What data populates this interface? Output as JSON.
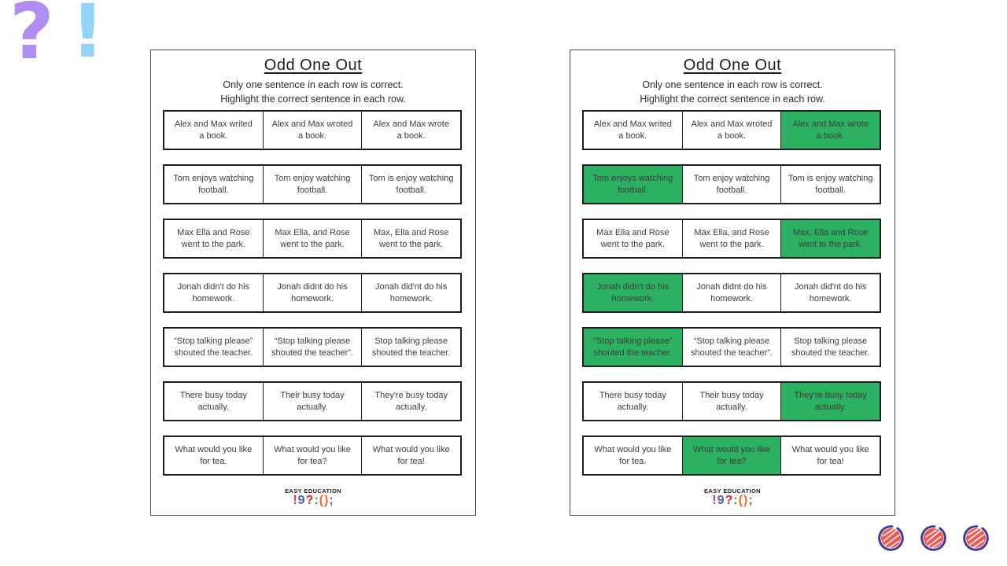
{
  "colors": {
    "highlight_green": "#2cb061",
    "question_mark_purple": "#b18df1",
    "exclamation_blue": "#92d4f7",
    "circle_ring": "#3b3e95",
    "circle_scribble": "#f4554e"
  },
  "decorations": {
    "question_mark": "?",
    "exclamation_mark": "!",
    "scribble_circle_count": 3
  },
  "worksheets": [
    {
      "side": "left",
      "title": "Odd One Out",
      "instructions": [
        "Only one sentence in each row is correct.",
        "Highlight the correct sentence in each row."
      ],
      "rows": [
        {
          "cells": [
            {
              "lines": [
                "Alex and Max writed",
                "a book."
              ],
              "highlight": false
            },
            {
              "lines": [
                "Alex and Max wroted",
                "a book."
              ],
              "highlight": false
            },
            {
              "lines": [
                "Alex and Max wrote",
                "a book."
              ],
              "highlight": false
            }
          ]
        },
        {
          "cells": [
            {
              "lines": [
                "Tom enjoys watching",
                "football."
              ],
              "highlight": false
            },
            {
              "lines": [
                "Tom enjoy watching",
                "football."
              ],
              "highlight": false
            },
            {
              "lines": [
                "Tom is enjoy watching",
                "football."
              ],
              "highlight": false
            }
          ]
        },
        {
          "cells": [
            {
              "lines": [
                "Max Ella and Rose",
                "went to the park."
              ],
              "highlight": false
            },
            {
              "lines": [
                "Max Ella, and Rose",
                "went to the park."
              ],
              "highlight": false
            },
            {
              "lines": [
                "Max, Ella and Rose",
                "went to the park."
              ],
              "highlight": false
            }
          ]
        },
        {
          "cells": [
            {
              "lines": [
                "Jonah didn't do his",
                "homework."
              ],
              "highlight": false
            },
            {
              "lines": [
                "Jonah didnt do his",
                "homework."
              ],
              "highlight": false
            },
            {
              "lines": [
                "Jonah did'nt do his",
                "homework."
              ],
              "highlight": false
            }
          ]
        },
        {
          "cells": [
            {
              "lines": [
                "“Stop talking please”",
                "shouted the teacher."
              ],
              "highlight": false
            },
            {
              "lines": [
                "“Stop talking please",
                "shouted the teacher”."
              ],
              "highlight": false
            },
            {
              "lines": [
                "Stop talking please",
                "shouted the teacher."
              ],
              "highlight": false
            }
          ]
        },
        {
          "cells": [
            {
              "lines": [
                "There busy today",
                "actually."
              ],
              "highlight": false
            },
            {
              "lines": [
                "Their busy today",
                "actually."
              ],
              "highlight": false
            },
            {
              "lines": [
                "They're busy today",
                "actually."
              ],
              "highlight": false
            }
          ]
        },
        {
          "cells": [
            {
              "lines": [
                "What would you like",
                "for tea."
              ],
              "highlight": false
            },
            {
              "lines": [
                "What would you like",
                "for tea?"
              ],
              "highlight": false
            },
            {
              "lines": [
                "What would you like",
                "for tea!"
              ],
              "highlight": false
            }
          ]
        }
      ],
      "footer": {
        "brand": "EASY EDUCATION",
        "logo_characters": [
          {
            "char": "!",
            "color": "#ed2c5a"
          },
          {
            "char": "9",
            "color": "#4f5bc4"
          },
          {
            "char": "?",
            "color": "#e0262b"
          },
          {
            "char": ":",
            "color": "#3a9448"
          },
          {
            "char": "(",
            "color": "#f26a21"
          },
          {
            "char": ")",
            "color": "#f26a21"
          },
          {
            "char": ";",
            "color": "#a4509b"
          }
        ]
      }
    },
    {
      "side": "right",
      "title": "Odd One Out",
      "instructions": [
        "Only one sentence in each row is correct.",
        "Highlight the correct sentence in each row."
      ],
      "rows": [
        {
          "cells": [
            {
              "lines": [
                "Alex and Max writed",
                "a book."
              ],
              "highlight": false
            },
            {
              "lines": [
                "Alex and Max wroted",
                "a book."
              ],
              "highlight": false
            },
            {
              "lines": [
                "Alex and Max wrote",
                "a book."
              ],
              "highlight": true
            }
          ]
        },
        {
          "cells": [
            {
              "lines": [
                "Tom enjoys watching",
                "football."
              ],
              "highlight": true
            },
            {
              "lines": [
                "Tom enjoy watching",
                "football."
              ],
              "highlight": false
            },
            {
              "lines": [
                "Tom is enjoy watching",
                "football."
              ],
              "highlight": false
            }
          ]
        },
        {
          "cells": [
            {
              "lines": [
                "Max Ella and Rose",
                "went to the park."
              ],
              "highlight": false
            },
            {
              "lines": [
                "Max Ella, and Rose",
                "went to the park."
              ],
              "highlight": false
            },
            {
              "lines": [
                "Max, Ella and Rose",
                "went to the park."
              ],
              "highlight": true
            }
          ]
        },
        {
          "cells": [
            {
              "lines": [
                "Jonah didn't do his",
                "homework."
              ],
              "highlight": true
            },
            {
              "lines": [
                "Jonah didnt do his",
                "homework."
              ],
              "highlight": false
            },
            {
              "lines": [
                "Jonah did'nt do his",
                "homework."
              ],
              "highlight": false
            }
          ]
        },
        {
          "cells": [
            {
              "lines": [
                "“Stop talking please”",
                "shouted the teacher."
              ],
              "highlight": true
            },
            {
              "lines": [
                "“Stop talking please",
                "shouted the teacher”."
              ],
              "highlight": false
            },
            {
              "lines": [
                "Stop talking please",
                "shouted the teacher."
              ],
              "highlight": false
            }
          ]
        },
        {
          "cells": [
            {
              "lines": [
                "There busy today",
                "actually."
              ],
              "highlight": false
            },
            {
              "lines": [
                "Their busy today",
                "actually."
              ],
              "highlight": false
            },
            {
              "lines": [
                "They're busy today",
                "actually."
              ],
              "highlight": true
            }
          ]
        },
        {
          "cells": [
            {
              "lines": [
                "What would you like",
                "for tea."
              ],
              "highlight": false
            },
            {
              "lines": [
                "What would you like",
                "for tea?"
              ],
              "highlight": true
            },
            {
              "lines": [
                "What would you like",
                "for tea!"
              ],
              "highlight": false
            }
          ]
        }
      ],
      "footer": {
        "brand": "EASY EDUCATION",
        "logo_characters": [
          {
            "char": "!",
            "color": "#ed2c5a"
          },
          {
            "char": "9",
            "color": "#4f5bc4"
          },
          {
            "char": "?",
            "color": "#e0262b"
          },
          {
            "char": ":",
            "color": "#3a9448"
          },
          {
            "char": "(",
            "color": "#f26a21"
          },
          {
            "char": ")",
            "color": "#f26a21"
          },
          {
            "char": ";",
            "color": "#a4509b"
          }
        ]
      }
    }
  ]
}
